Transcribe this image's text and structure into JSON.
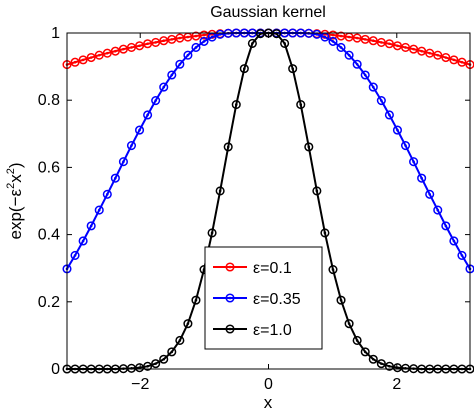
{
  "chart_data": {
    "type": "line",
    "title": "Gaussian kernel",
    "xlabel": "x",
    "ylabel_parts": [
      "exp(−ε",
      "2",
      "x",
      "2",
      ")"
    ],
    "xlim": [
      -3.14159,
      3.14159
    ],
    "ylim": [
      0,
      1
    ],
    "x_ticks": [
      -2,
      0,
      2
    ],
    "x_tick_labels": [
      "−2",
      "0",
      "2"
    ],
    "y_ticks": [
      0,
      0.2,
      0.4,
      0.6,
      0.8,
      1
    ],
    "y_tick_labels": [
      "0",
      "0.2",
      "0.4",
      "0.6",
      "0.8",
      "1"
    ],
    "grid": false,
    "legend_position": "bottom-center",
    "x_range": {
      "start": -3.14159,
      "end": 3.14159,
      "points": 51
    },
    "series": [
      {
        "name": "ε=0.1",
        "epsilon": 0.1,
        "color": "#ff0000",
        "marker": "circle",
        "values": [
          0.906,
          0.913,
          0.92,
          0.927,
          0.934,
          0.94,
          0.946,
          0.952,
          0.957,
          0.962,
          0.968,
          0.972,
          0.977,
          0.981,
          0.985,
          0.988,
          0.991,
          0.994,
          0.996,
          0.998,
          0.999,
          1.0,
          1.0,
          1.0,
          1.0,
          1.0,
          1.0,
          1.0,
          1.0,
          1.0,
          0.999,
          0.998,
          0.996,
          0.994,
          0.991,
          0.988,
          0.985,
          0.981,
          0.977,
          0.972,
          0.968,
          0.962,
          0.957,
          0.952,
          0.946,
          0.94,
          0.934,
          0.927,
          0.92,
          0.913,
          0.906
        ]
      },
      {
        "name": "ε=0.35",
        "epsilon": 0.35,
        "color": "#0000ff",
        "marker": "circle",
        "values": [
          0.298,
          0.338,
          0.381,
          0.426,
          0.473,
          0.52,
          0.568,
          0.617,
          0.665,
          0.711,
          0.756,
          0.799,
          0.839,
          0.875,
          0.907,
          0.934,
          0.957,
          0.975,
          0.988,
          0.996,
          0.999,
          1.0,
          1.0,
          1.0,
          1.0,
          1.0,
          1.0,
          1.0,
          1.0,
          1.0,
          0.999,
          0.996,
          0.988,
          0.975,
          0.957,
          0.934,
          0.907,
          0.875,
          0.839,
          0.799,
          0.756,
          0.711,
          0.665,
          0.617,
          0.568,
          0.52,
          0.473,
          0.426,
          0.381,
          0.338,
          0.298
        ]
      },
      {
        "name": "ε=1.0",
        "epsilon": 1.0,
        "color": "#000000",
        "marker": "circle",
        "values": [
          0.0,
          0.0,
          0.0,
          0.0,
          0.0,
          0.0,
          0.0,
          0.001,
          0.002,
          0.004,
          0.008,
          0.016,
          0.029,
          0.051,
          0.085,
          0.135,
          0.205,
          0.296,
          0.405,
          0.53,
          0.661,
          0.787,
          0.894,
          0.969,
          0.998,
          1.0,
          0.998,
          0.969,
          0.894,
          0.787,
          0.661,
          0.53,
          0.405,
          0.296,
          0.205,
          0.135,
          0.085,
          0.051,
          0.029,
          0.016,
          0.008,
          0.004,
          0.002,
          0.001,
          0.0,
          0.0,
          0.0,
          0.0,
          0.0,
          0.0,
          0.0
        ]
      }
    ]
  }
}
